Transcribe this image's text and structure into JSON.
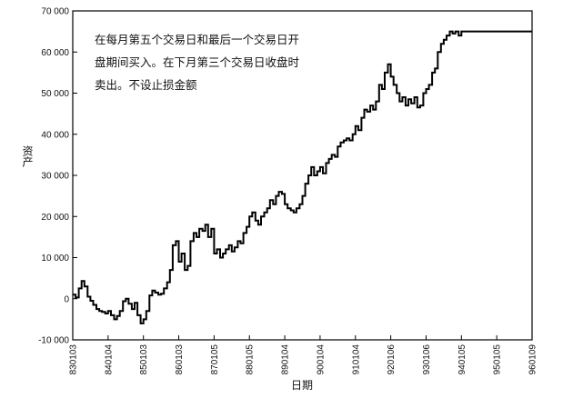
{
  "chart_data": {
    "type": "line",
    "step": true,
    "xlabel": "日期",
    "ylabel": "资产",
    "annotation_lines": [
      "在每月第五个交易日和最后一个交易日开",
      "盘期间买入。在下月第三个交易日收盘时",
      "卖出。不设止损金额"
    ],
    "ylim": [
      -10000,
      70000
    ],
    "y_ticks": [
      -10000,
      0,
      10000,
      20000,
      30000,
      40000,
      50000,
      60000,
      70000
    ],
    "y_tick_labels": [
      "-10 000",
      "0",
      "10 000",
      "20 000",
      "30 000",
      "40 000",
      "50 000",
      "60 000",
      "70 000"
    ],
    "x_tick_labels": [
      "830103",
      "840104",
      "850103",
      "860103",
      "870105",
      "880105",
      "890104",
      "900104",
      "910104",
      "920106",
      "930106",
      "940105",
      "950105",
      "960109"
    ],
    "x_start_year": 1983,
    "x_end_year": 1996,
    "grid": false,
    "legend": "none",
    "line_color": "#000000",
    "series": [
      {
        "x": [
          1983.0,
          1983.08,
          1983.17,
          1983.25,
          1983.33,
          1983.42,
          1983.5,
          1983.58,
          1983.67,
          1983.75,
          1983.83,
          1983.92,
          1984.0,
          1984.08,
          1984.17,
          1984.25,
          1984.33,
          1984.42,
          1984.5,
          1984.58,
          1984.67,
          1984.75,
          1984.83,
          1984.92,
          1985.0,
          1985.08,
          1985.17,
          1985.25,
          1985.33,
          1985.42,
          1985.5,
          1985.58,
          1985.67,
          1985.75,
          1985.83,
          1985.92,
          1986.0,
          1986.08,
          1986.17,
          1986.25,
          1986.33,
          1986.42,
          1986.5,
          1986.58,
          1986.67,
          1986.75,
          1986.83,
          1986.92,
          1987.0,
          1987.08,
          1987.17,
          1987.25,
          1987.33,
          1987.42,
          1987.5,
          1987.58,
          1987.67,
          1987.75,
          1987.83,
          1987.92,
          1988.0,
          1988.08,
          1988.17,
          1988.25,
          1988.33,
          1988.42,
          1988.5,
          1988.58,
          1988.67,
          1988.75,
          1988.83,
          1988.92,
          1989.0,
          1989.08,
          1989.17,
          1989.25,
          1989.33,
          1989.42,
          1989.5,
          1989.58,
          1989.67,
          1989.75,
          1989.83,
          1989.92,
          1990.0,
          1990.08,
          1990.17,
          1990.25,
          1990.33,
          1990.42,
          1990.5,
          1990.58,
          1990.67,
          1990.75,
          1990.83,
          1990.92,
          1991.0,
          1991.08,
          1991.17,
          1991.25,
          1991.33,
          1991.42,
          1991.5,
          1991.58,
          1991.67,
          1991.75,
          1991.83,
          1991.92,
          1992.0,
          1992.08,
          1992.17,
          1992.25,
          1992.33,
          1992.42,
          1992.5,
          1992.58,
          1992.67,
          1992.75,
          1992.83,
          1992.92,
          1993.0,
          1993.08,
          1993.17,
          1993.25,
          1993.33,
          1993.42,
          1993.5,
          1993.58,
          1993.67,
          1993.75,
          1993.83,
          1993.92,
          1994.0,
          1994.08,
          1994.17,
          1994.25,
          1994.33,
          1994.42,
          1994.5,
          1994.58,
          1994.67,
          1994.75,
          1994.83,
          1994.92,
          1995.0,
          1995.08,
          1995.17,
          1995.25,
          1995.33,
          1995.42,
          1995.5,
          1995.58,
          1995.67,
          1995.75,
          1995.83,
          1995.92,
          1996.0
        ],
        "values": [
          1000,
          300,
          2500,
          4300,
          3000,
          500,
          -500,
          -1500,
          -2500,
          -3000,
          -3200,
          -3600,
          -3000,
          -4000,
          -5000,
          -4200,
          -3000,
          -600,
          0,
          -1200,
          -2500,
          -1000,
          -4000,
          -6000,
          -5000,
          -3000,
          800,
          2000,
          1500,
          1000,
          1200,
          2500,
          4000,
          7000,
          13000,
          14000,
          9000,
          11000,
          7000,
          8000,
          14000,
          16000,
          15000,
          17000,
          16500,
          18000,
          15000,
          17000,
          11000,
          12000,
          10000,
          11000,
          12000,
          13000,
          11500,
          12500,
          14000,
          13500,
          16000,
          17500,
          20000,
          21000,
          19000,
          18000,
          20000,
          21000,
          22000,
          24000,
          23000,
          25000,
          26000,
          25500,
          23000,
          22000,
          21500,
          21000,
          22000,
          23000,
          25000,
          28000,
          30000,
          32000,
          30000,
          31000,
          32000,
          30500,
          33000,
          34000,
          35000,
          34500,
          37000,
          38000,
          38500,
          39000,
          38500,
          40000,
          42000,
          41000,
          44000,
          46000,
          45500,
          47000,
          46000,
          48000,
          52000,
          51000,
          55000,
          57000,
          54000,
          52000,
          50000,
          48000,
          49000,
          47000,
          48500,
          47500,
          49000,
          46500,
          47000,
          50000,
          51000,
          52000,
          55000,
          56000,
          60000,
          62000,
          63000,
          64000,
          65000,
          64500,
          65000,
          64000,
          65000,
          65000,
          65000,
          65000,
          65000,
          65000,
          65000,
          65000,
          65000,
          65000,
          65000,
          65000,
          65000,
          65000,
          65000,
          65000,
          65000,
          65000,
          65000,
          65000,
          65000,
          65000,
          65000,
          65000,
          65000
        ]
      }
    ]
  }
}
